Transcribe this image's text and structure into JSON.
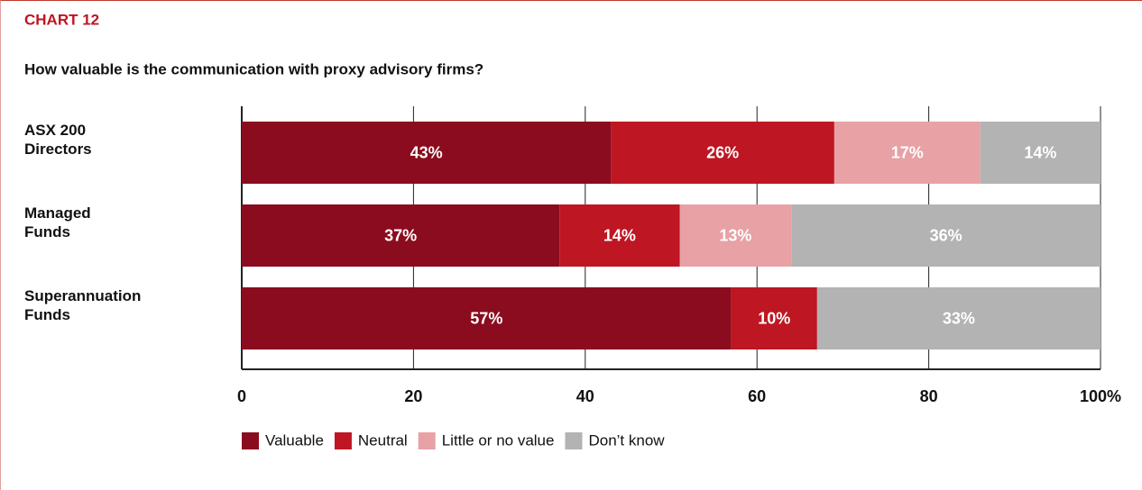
{
  "chart_data": {
    "type": "stacked_barh",
    "label": "CHART 12",
    "title": "How valuable is the communication with proxy advisory firms?",
    "categories": [
      "ASX 200\nDirectors",
      "Managed\nFunds",
      "Superannuation\nFunds"
    ],
    "series": [
      {
        "name": "Valuable",
        "color": "#8b0c1e",
        "values": [
          43,
          37,
          57
        ],
        "value_labels": [
          "43%",
          "37%",
          "57%"
        ]
      },
      {
        "name": "Neutral",
        "color": "#be1622",
        "values": [
          26,
          14,
          10
        ],
        "value_labels": [
          "26%",
          "14%",
          "10%"
        ]
      },
      {
        "name": "Little or no value",
        "color": "#e8a1a4",
        "values": [
          17,
          13,
          null
        ],
        "value_labels": [
          "17%",
          "13%",
          null
        ]
      },
      {
        "name": "Don’t know",
        "color": "#b3b3b3",
        "values": [
          14,
          36,
          33
        ],
        "value_labels": [
          "14%",
          "36%",
          "33%"
        ]
      }
    ],
    "xlim": [
      0,
      100
    ],
    "xticks": [
      0,
      20,
      40,
      60,
      80,
      {
        "value": 100,
        "label": "100%"
      }
    ],
    "grid": true,
    "legend": "bottom"
  }
}
